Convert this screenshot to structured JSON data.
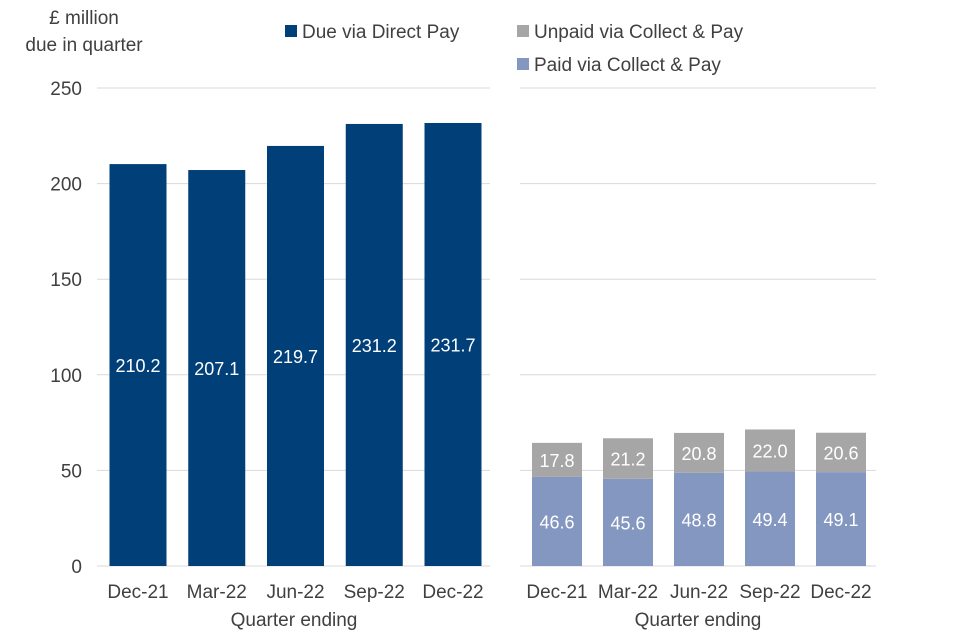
{
  "chart_data": {
    "type": "bar",
    "ylabel_line1": "£ million",
    "ylabel_line2": "due in quarter",
    "ylim": [
      0,
      250
    ],
    "yticks": [
      "0",
      "50",
      "100",
      "150",
      "200",
      "250"
    ],
    "ytick_values": [
      0,
      50,
      100,
      150,
      200,
      250
    ],
    "legend": {
      "direct": "Due via Direct Pay",
      "unpaid": "Unpaid via Collect & Pay",
      "paid": "Paid via Collect & Pay"
    },
    "colors": {
      "direct": "#003F78",
      "unpaid": "#A6A6A6",
      "paid": "#8497C1",
      "grid": "#D9D9D9",
      "axis": "#D9D9D9"
    },
    "panels": [
      {
        "name": "direct-pay-panel",
        "xlabel": "Quarter ending",
        "categories": [
          "Dec-21",
          "Mar-22",
          "Jun-22",
          "Sep-22",
          "Dec-22"
        ],
        "series": [
          {
            "name": "Due via Direct Pay",
            "key": "direct",
            "values": [
              210.2,
              207.1,
              219.7,
              231.2,
              231.7
            ],
            "labels": [
              "210.2",
              "207.1",
              "219.7",
              "231.2",
              "231.7"
            ]
          }
        ]
      },
      {
        "name": "collect-pay-panel",
        "xlabel": "Quarter ending",
        "categories": [
          "Dec-21",
          "Mar-22",
          "Jun-22",
          "Sep-22",
          "Dec-22"
        ],
        "series": [
          {
            "name": "Paid via Collect & Pay",
            "key": "paid",
            "values": [
              46.6,
              45.6,
              48.8,
              49.4,
              49.1
            ],
            "labels": [
              "46.6",
              "45.6",
              "48.8",
              "49.4",
              "49.1"
            ]
          },
          {
            "name": "Unpaid via Collect & Pay",
            "key": "unpaid",
            "values": [
              17.8,
              21.2,
              20.8,
              22.0,
              20.6
            ],
            "labels": [
              "17.8",
              "21.2",
              "20.8",
              "22.0",
              "20.6"
            ]
          }
        ]
      }
    ]
  }
}
